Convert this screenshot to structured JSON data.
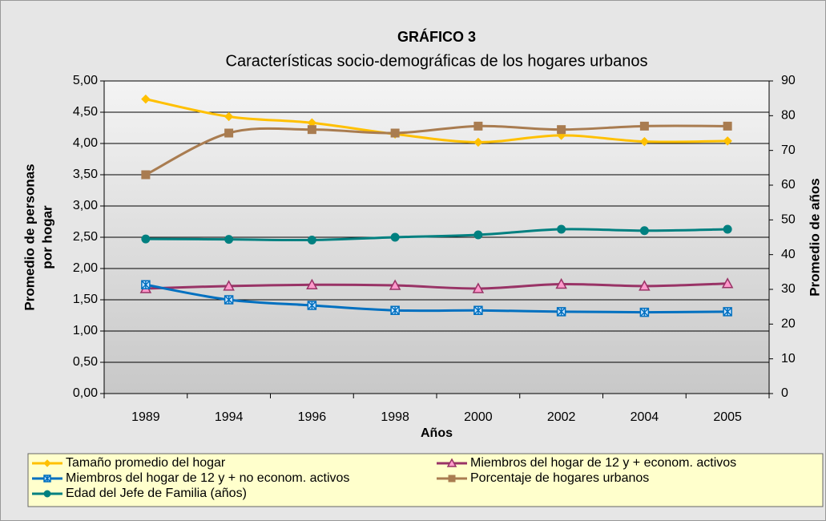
{
  "chart_data": {
    "type": "line",
    "title": "GRÁFICO 3",
    "subtitle": "Características socio-demográficas de los hogares urbanos",
    "x_label": "Años",
    "y_label": [
      "Promedio de personas",
      "por hogar"
    ],
    "y2_label": "Promedio de años",
    "categories": [
      "1989",
      "1994",
      "1996",
      "1998",
      "2000",
      "2002",
      "2004",
      "2005"
    ],
    "ylim": [
      0,
      5
    ],
    "yticks": [
      {
        "value": 0,
        "label": "0,00"
      },
      {
        "value": 0.5,
        "label": "0,50"
      },
      {
        "value": 1,
        "label": "1,00"
      },
      {
        "value": 1.5,
        "label": "1,50"
      },
      {
        "value": 2,
        "label": "2,00"
      },
      {
        "value": 2.5,
        "label": "2,50"
      },
      {
        "value": 3,
        "label": "3,00"
      },
      {
        "value": 3.5,
        "label": "3,50"
      },
      {
        "value": 4,
        "label": "4,00"
      },
      {
        "value": 4.5,
        "label": "4,50"
      },
      {
        "value": 5,
        "label": "5,00"
      }
    ],
    "y2lim": [
      0,
      90
    ],
    "y2ticks": [
      0,
      10,
      20,
      30,
      40,
      50,
      60,
      70,
      80,
      90
    ],
    "grid": true,
    "legend": "bottom",
    "series": [
      {
        "name": "Tamaño promedio del hogar",
        "color": "#FFC000",
        "marker": "diamond",
        "values": [
          4.71,
          4.43,
          4.33,
          4.15,
          4.02,
          4.13,
          4.03,
          4.04
        ]
      },
      {
        "name": "Miembros del hogar de 12 y + econom. activos",
        "color": "#993366",
        "marker": "triangle",
        "values": [
          1.68,
          1.72,
          1.74,
          1.73,
          1.68,
          1.75,
          1.72,
          1.76
        ]
      },
      {
        "name": "Miembros del hogar de 12 y + no econom. activos",
        "color": "#0070C0",
        "marker": "x",
        "values": [
          1.74,
          1.5,
          1.41,
          1.33,
          1.33,
          1.31,
          1.3,
          1.31
        ]
      },
      {
        "name": "Porcentaje de hogares urbanos",
        "color": "#A97C50",
        "marker": "square",
        "axis": "y2",
        "values": [
          63,
          75,
          76,
          75,
          77,
          76,
          77,
          77
        ]
      },
      {
        "name": "Edad del Jefe de Familia (años)",
        "color": "#008080",
        "marker": "circle",
        "axis": "y2",
        "values": [
          44.5,
          44.4,
          44.2,
          45,
          45.7,
          47.3,
          46.9,
          47.3
        ]
      }
    ]
  }
}
